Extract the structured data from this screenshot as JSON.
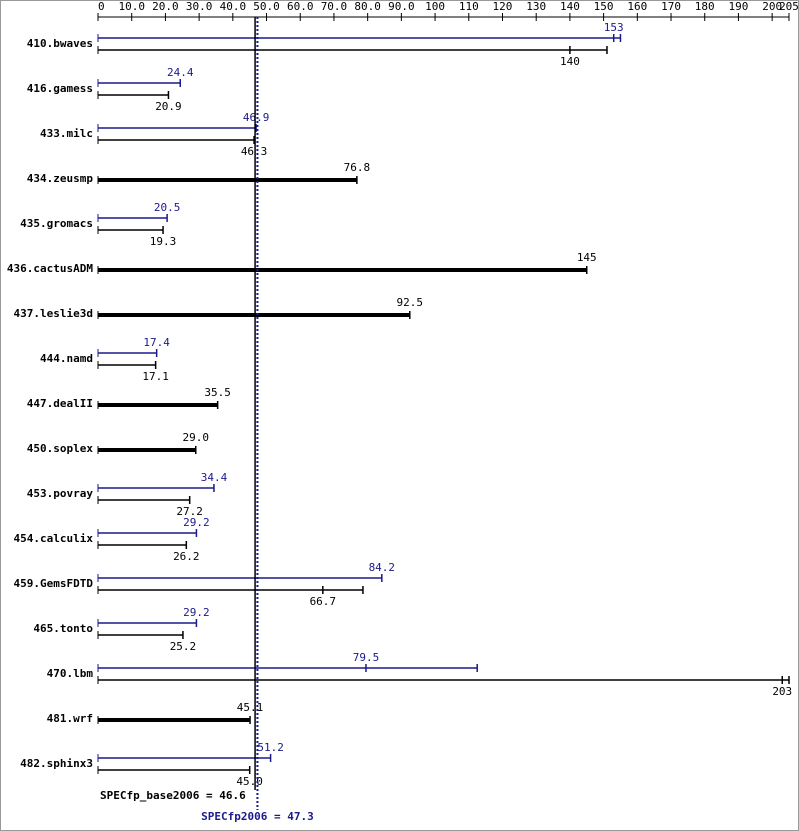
{
  "chart_data": {
    "type": "spec-bar",
    "xlim": [
      0,
      205
    ],
    "xticks": [
      0,
      {
        "value": 10,
        "label": "10.0"
      },
      {
        "value": 20,
        "label": "20.0"
      },
      {
        "value": 30,
        "label": "30.0"
      },
      {
        "value": 40,
        "label": "40.0"
      },
      {
        "value": 50,
        "label": "50.0"
      },
      {
        "value": 60,
        "label": "60.0"
      },
      {
        "value": 70,
        "label": "70.0"
      },
      {
        "value": 80,
        "label": "80.0"
      },
      {
        "value": 90,
        "label": "90.0"
      },
      100,
      110,
      120,
      130,
      140,
      150,
      160,
      170,
      180,
      190,
      200,
      205
    ],
    "base_color": "#000000",
    "peak_color": "#1a1a8c",
    "rows": [
      {
        "name": "410.bwaves",
        "peak": 153,
        "peak_max": 155,
        "base": 140,
        "base_max": 151
      },
      {
        "name": "416.gamess",
        "peak": 24.4,
        "base": 20.9
      },
      {
        "name": "433.milc",
        "peak": 46.9,
        "base": 46.3
      },
      {
        "name": "434.zeusmp",
        "base": 76.8
      },
      {
        "name": "435.gromacs",
        "peak": 20.5,
        "base": 19.3
      },
      {
        "name": "436.cactusADM",
        "base": 145
      },
      {
        "name": "437.leslie3d",
        "base": 92.5
      },
      {
        "name": "444.namd",
        "peak": 17.4,
        "base": 17.1
      },
      {
        "name": "447.dealII",
        "base": 35.5
      },
      {
        "name": "450.soplex",
        "base": 29,
        "base_label": "29.0"
      },
      {
        "name": "453.povray",
        "peak": 34.4,
        "base": 27.2
      },
      {
        "name": "454.calculix",
        "peak": 29.2,
        "base": 26.2
      },
      {
        "name": "459.GemsFDTD",
        "peak": 84.2,
        "base": 66.7,
        "base_max": 78.6
      },
      {
        "name": "465.tonto",
        "peak": 29.2,
        "base": 25.2
      },
      {
        "name": "470.lbm",
        "peak": 79.5,
        "peak_max": 112.5,
        "base": 203,
        "base_max": 205
      },
      {
        "name": "481.wrf",
        "base": 45.1
      },
      {
        "name": "482.sphinx3",
        "peak": 51.2,
        "base": 45,
        "base_label": "45.0"
      }
    ],
    "base_score": {
      "label": "SPECfp_base2006 = 46.6",
      "value": 46.6
    },
    "peak_score": {
      "label": "SPECfp2006 = 47.3",
      "value": 47.3
    }
  }
}
